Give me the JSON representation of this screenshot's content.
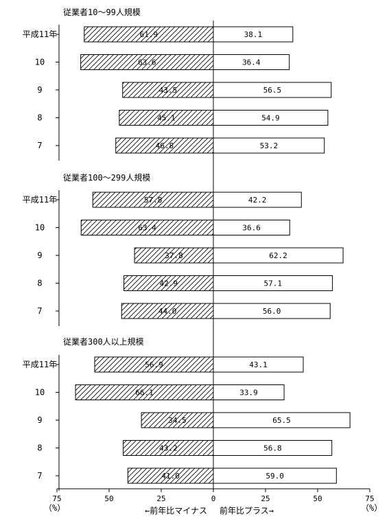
{
  "chart_data": {
    "type": "bar",
    "orientation": "horizontal-diverging",
    "negative_series": "前年比マイナス",
    "positive_series": "前年比プラス",
    "xlim": [
      -75,
      75
    ],
    "x_ticks": [
      75,
      50,
      25,
      0,
      25,
      50,
      75
    ],
    "x_unit_left": "（%）",
    "x_unit_right": "（%）",
    "xlabel_left": "←前年比マイナス",
    "xlabel_right": "前年比プラス→",
    "groups": [
      {
        "title": "従業者10～99人規模",
        "categories": [
          "平成11年",
          "10",
          "9",
          "8",
          "7"
        ],
        "minus": [
          61.9,
          63.6,
          43.5,
          45.1,
          46.8
        ],
        "plus": [
          38.1,
          36.4,
          56.5,
          54.9,
          53.2
        ]
      },
      {
        "title": "従業者100～299人規模",
        "categories": [
          "平成11年",
          "10",
          "9",
          "8",
          "7"
        ],
        "minus": [
          57.8,
          63.4,
          37.8,
          42.9,
          44.0
        ],
        "plus": [
          42.2,
          36.6,
          62.2,
          57.1,
          56.0
        ]
      },
      {
        "title": "従業者300人以上規模",
        "categories": [
          "平成11年",
          "10",
          "9",
          "8",
          "7"
        ],
        "minus": [
          56.9,
          66.1,
          34.5,
          43.2,
          41.0
        ],
        "plus": [
          43.1,
          33.9,
          65.5,
          56.8,
          59.0
        ]
      }
    ]
  }
}
